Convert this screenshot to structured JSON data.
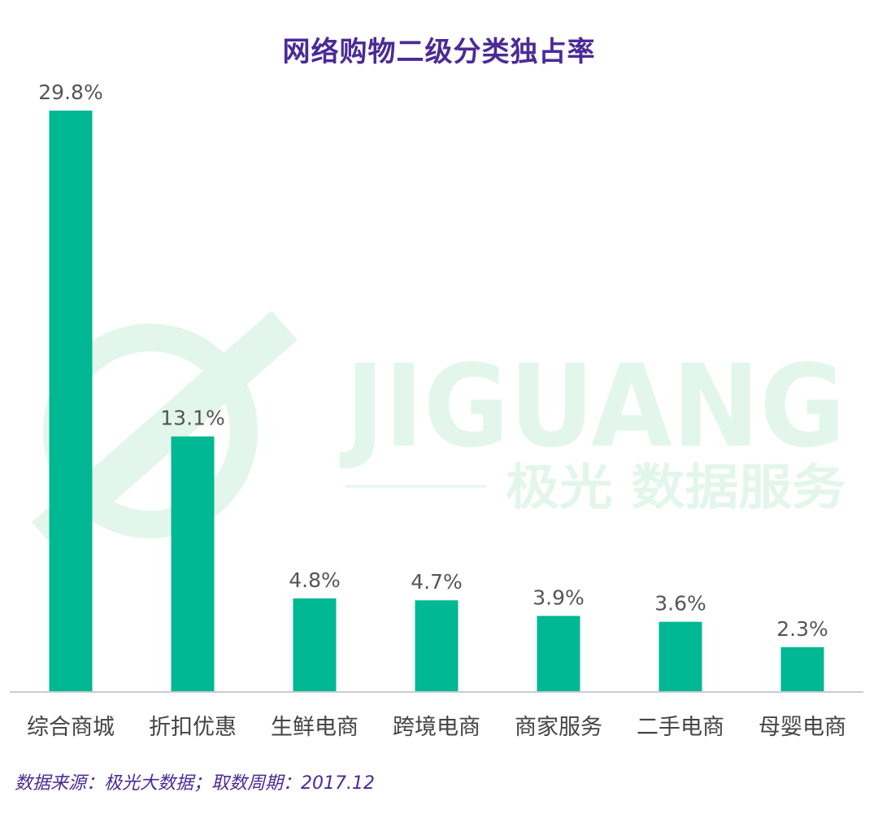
{
  "title": "网络购物二级分类独占率",
  "source": "数据来源：极光大数据；取数周期：2017.12",
  "watermark": {
    "brand": "JIGUANG",
    "tagline": "极光 数据服务",
    "color": "#e3f6ec"
  },
  "colors": {
    "bar": "#00b894",
    "title": "#4b2a96",
    "axis": "#cccccc"
  },
  "chart_data": {
    "type": "bar",
    "title": "网络购物二级分类独占率",
    "categories": [
      "综合商城",
      "折扣优惠",
      "生鲜电商",
      "跨境电商",
      "商家服务",
      "二手电商",
      "母婴电商"
    ],
    "values": [
      29.8,
      13.1,
      4.8,
      4.7,
      3.9,
      3.6,
      2.3
    ],
    "value_labels": [
      "29.8%",
      "13.1%",
      "4.8%",
      "4.7%",
      "3.9%",
      "3.6%",
      "2.3%"
    ],
    "unit": "%",
    "ylim": [
      0,
      29.8
    ],
    "grid": false,
    "legend": "none"
  }
}
